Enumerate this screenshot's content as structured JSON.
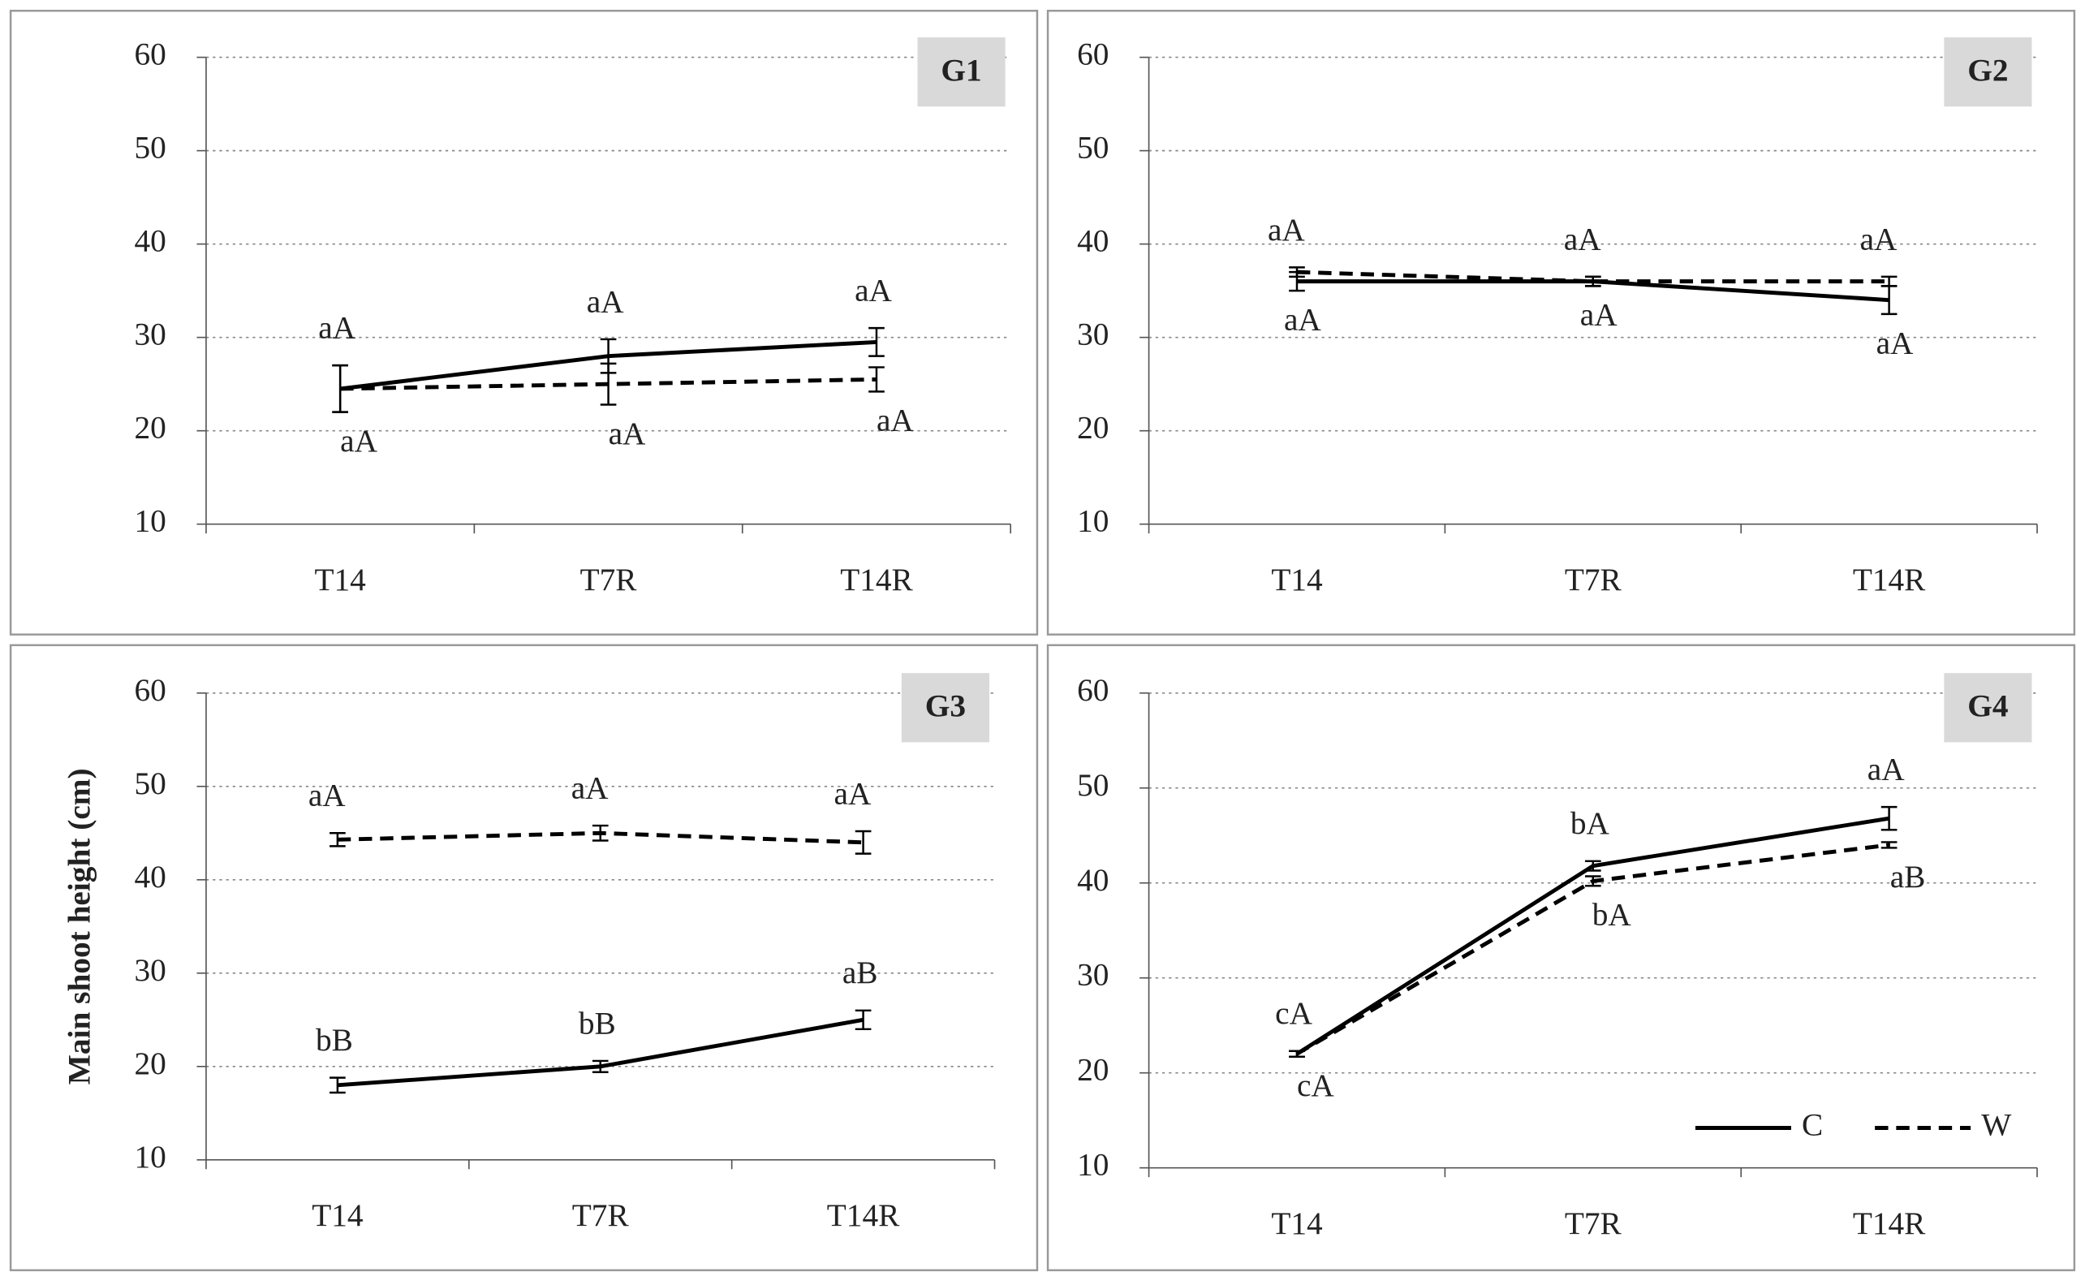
{
  "chart_data": [
    {
      "type": "line",
      "title": "G1",
      "categories": [
        "T14",
        "T7R",
        "T14R"
      ],
      "series": [
        {
          "name": "C",
          "color": "#000000",
          "dash": false,
          "values": [
            24.5,
            28,
            29.5
          ],
          "errors": [
            2.5,
            1.8,
            1.5
          ],
          "letters": [
            "aA",
            "aA",
            "aA"
          ]
        },
        {
          "name": "W",
          "color": "#000000",
          "dash": true,
          "values": [
            24.5,
            25,
            25.5
          ],
          "errors": [
            2.5,
            2.2,
            1.3
          ],
          "letters": [
            "aA",
            "aA",
            "aA"
          ]
        }
      ],
      "ylim": [
        10,
        60
      ],
      "yticks": [
        10,
        20,
        30,
        40,
        50,
        60
      ],
      "grid": true
    },
    {
      "type": "line",
      "title": "G2",
      "categories": [
        "T14",
        "T7R",
        "T14R"
      ],
      "series": [
        {
          "name": "C",
          "color": "#000000",
          "dash": false,
          "values": [
            36,
            36,
            34
          ],
          "errors": [
            1,
            0.5,
            1.5
          ],
          "letters": [
            "aA",
            "aA",
            "aA"
          ]
        },
        {
          "name": "W",
          "color": "#000000",
          "dash": true,
          "values": [
            37,
            36,
            36
          ],
          "errors": [
            0.5,
            0.5,
            0.5
          ],
          "letters": [
            "aA",
            "aA",
            "aA"
          ]
        }
      ],
      "ylim": [
        10,
        60
      ],
      "yticks": [
        10,
        20,
        30,
        40,
        50,
        60
      ],
      "grid": true
    },
    {
      "type": "line",
      "title": "G3",
      "ylabel": "Main shoot height (cm)",
      "categories": [
        "T14",
        "T7R",
        "T14R"
      ],
      "series": [
        {
          "name": "C",
          "color": "#000000",
          "dash": false,
          "values": [
            18,
            20,
            25
          ],
          "errors": [
            0.8,
            0.6,
            1
          ],
          "letters": [
            "bB",
            "bB",
            "aB"
          ]
        },
        {
          "name": "W",
          "color": "#000000",
          "dash": true,
          "values": [
            44.3,
            45,
            44
          ],
          "errors": [
            0.7,
            0.8,
            1.2
          ],
          "letters": [
            "aA",
            "aA",
            "aA"
          ]
        }
      ],
      "ylim": [
        10,
        60
      ],
      "yticks": [
        10,
        20,
        30,
        40,
        50,
        60
      ],
      "grid": true
    },
    {
      "type": "line",
      "title": "G4",
      "categories": [
        "T14",
        "T7R",
        "T14R"
      ],
      "series": [
        {
          "name": "C",
          "color": "#000000",
          "dash": false,
          "values": [
            22,
            41.8,
            46.8
          ],
          "errors": [
            0.3,
            0.5,
            1.2
          ],
          "letters": [
            "cA",
            "bA",
            "aA"
          ]
        },
        {
          "name": "W",
          "color": "#000000",
          "dash": true,
          "values": [
            22,
            40.2,
            44
          ],
          "errors": [
            0.3,
            0.5,
            0.3
          ],
          "letters": [
            "cA",
            "bA",
            "aB"
          ]
        }
      ],
      "ylim": [
        10,
        60
      ],
      "yticks": [
        10,
        20,
        30,
        40,
        50,
        60
      ],
      "grid": true,
      "legend": "lower right"
    }
  ]
}
